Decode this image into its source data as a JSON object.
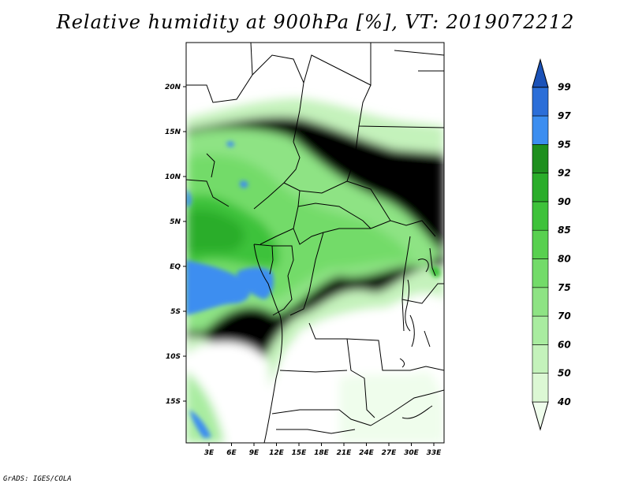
{
  "title": "Relative humidity at 900hPa [%], VT: 2019072212",
  "credit": "GrADS: IGES/COLA",
  "map": {
    "lat_labels": [
      "20N",
      "15N",
      "10N",
      "5N",
      "EQ",
      "5S",
      "10S",
      "15S"
    ],
    "lon_labels": [
      "3E",
      "6E",
      "9E",
      "12E",
      "15E",
      "18E",
      "21E",
      "24E",
      "27E",
      "30E",
      "33E"
    ]
  },
  "colorbar": {
    "levels": [
      "40",
      "50",
      "60",
      "70",
      "75",
      "80",
      "85",
      "90",
      "92",
      "95",
      "97",
      "99"
    ],
    "colors": [
      "#effdec",
      "#dcf8d4",
      "#c4f2bb",
      "#a9ecA0",
      "#8ee384",
      "#73db69",
      "#58d04f",
      "#3ec23a",
      "#2aad2a",
      "#1e8f1e",
      "#3c8ef0",
      "#2b6ed8",
      "#1b52b8"
    ]
  }
}
